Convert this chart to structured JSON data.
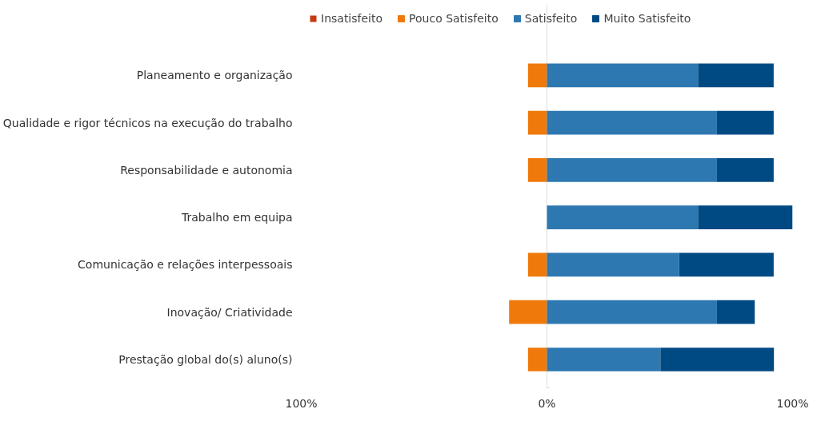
{
  "chart_data": {
    "type": "bar",
    "orientation": "horizontal",
    "stacked": true,
    "categories": [
      "Planeamento e organização",
      "Qualidade e rigor técnicos na execução do trabalho",
      "Responsabilidade e autonomia",
      "Trabalho em equipa",
      "Comunicação e relações interpessoais",
      "Inovação/ Criatividade",
      "Prestação global do(s) aluno(s)"
    ],
    "series": [
      {
        "name": "Insatisfeito",
        "color": "#c43b0e",
        "values": [
          0,
          0,
          0,
          0,
          0,
          0,
          0
        ]
      },
      {
        "name": "Pouco Satisfeito",
        "color": "#ef7a0b",
        "values": [
          -7.7,
          -7.7,
          -7.7,
          0,
          -7.7,
          -15.4,
          -7.7
        ]
      },
      {
        "name": "Satisfeito",
        "color": "#2e78b2",
        "values": [
          61.5,
          69.2,
          69.2,
          61.5,
          53.8,
          69.2,
          46.2
        ]
      },
      {
        "name": "Muito Satisfeito",
        "color": "#004a84",
        "values": [
          30.8,
          23.1,
          23.1,
          38.5,
          38.5,
          15.4,
          46.2
        ]
      }
    ],
    "xlim": [
      -100,
      100
    ],
    "xticks": [
      {
        "value": -100,
        "label": "100%"
      },
      {
        "value": 0,
        "label": "0%"
      },
      {
        "value": 100,
        "label": "100%"
      }
    ],
    "grid": "x",
    "legend": "top left"
  }
}
